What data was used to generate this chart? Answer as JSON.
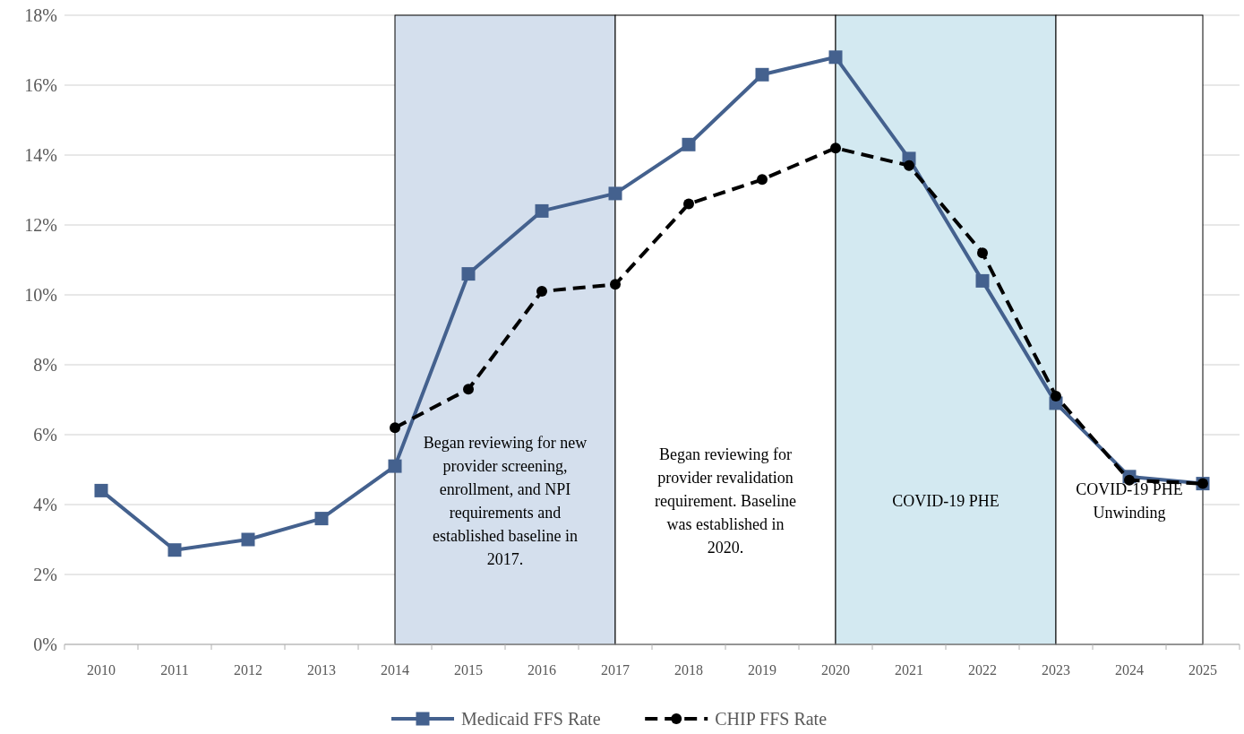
{
  "chart_data": {
    "type": "line",
    "categories": [
      "2010",
      "2011",
      "2012",
      "2013",
      "2014",
      "2015",
      "2016",
      "2017",
      "2018",
      "2019",
      "2020",
      "2021",
      "2022",
      "2023",
      "2024",
      "2025"
    ],
    "series": [
      {
        "name": "Medicaid FFS Rate",
        "color": "#44618e",
        "marker": "square",
        "line_style": "solid",
        "values": [
          4.4,
          2.7,
          3.0,
          3.6,
          5.1,
          10.6,
          12.4,
          12.9,
          14.3,
          16.3,
          16.8,
          13.9,
          10.4,
          6.9,
          4.8,
          4.6
        ]
      },
      {
        "name": "CHIP FFS Rate",
        "color": "#000000",
        "marker": "circle",
        "line_style": "dashed",
        "values": [
          null,
          null,
          null,
          null,
          6.2,
          7.3,
          10.1,
          10.3,
          12.6,
          13.3,
          14.2,
          13.7,
          11.2,
          7.1,
          4.7,
          4.6
        ]
      }
    ],
    "ylim": [
      0,
      18
    ],
    "yticks": [
      {
        "value": 0,
        "label": "0%"
      },
      {
        "value": 2,
        "label": "2%"
      },
      {
        "value": 4,
        "label": "4%"
      },
      {
        "value": 6,
        "label": "6%"
      },
      {
        "value": 8,
        "label": "8%"
      },
      {
        "value": 10,
        "label": "10%"
      },
      {
        "value": 12,
        "label": "12%"
      },
      {
        "value": 14,
        "label": "14%"
      },
      {
        "value": 16,
        "label": "16%"
      },
      {
        "value": 18,
        "label": "18%"
      }
    ],
    "grid": "y",
    "legend": "bottom",
    "bands": [
      {
        "axis": "x",
        "from": "2014",
        "to": "2017",
        "label": "Began reviewing for new provider screening, enrollment, and NPI requirements and established baseline in 2017.",
        "color": "#d4dfed"
      },
      {
        "axis": "x",
        "from": "2017",
        "to": "2020",
        "label": "Began reviewing for provider revalidation requirement. Baseline was established in 2020.",
        "color": "#ffffff"
      },
      {
        "axis": "x",
        "from": "2020",
        "to": "2023",
        "label": "COVID-19 PHE",
        "color": "#d3e9f1"
      },
      {
        "axis": "x",
        "from": "2023",
        "to": "2025",
        "label": "COVID-19 PHE Unwinding",
        "color": "#ffffff"
      }
    ]
  }
}
